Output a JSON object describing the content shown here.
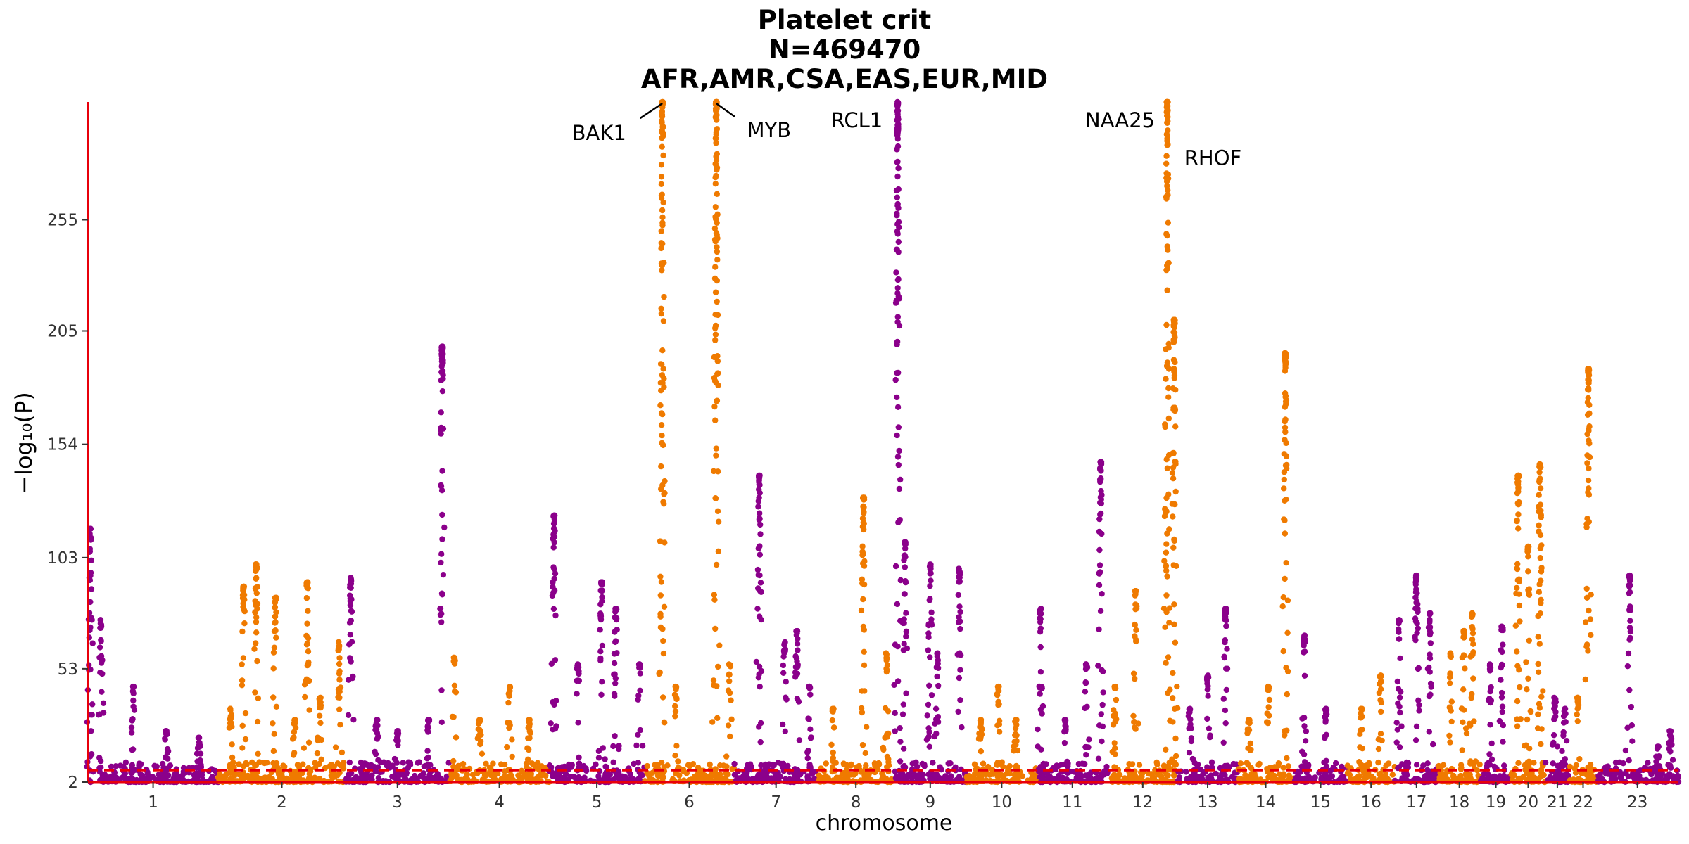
{
  "title_lines": [
    "Platelet crit",
    "N=469470",
    "AFR,AMR,CSA,EAS,EUR,MID"
  ],
  "colors": {
    "odd": "#8b008b",
    "even": "#ef7a00",
    "axis": "#e8000b",
    "threshold": "#e8000b"
  },
  "chart_data": {
    "type": "scatter",
    "subtype": "manhattan",
    "xlabel": "chromosome",
    "ylabel": "−log₁₀(P)",
    "yticks": [
      2,
      53,
      103,
      154,
      205,
      255
    ],
    "ylim": [
      2,
      308
    ],
    "threshold": 7.3,
    "chromosomes": [
      {
        "label": "1",
        "size": 248,
        "peaks": [
          [
            0.02,
            116
          ],
          [
            0.1,
            75
          ],
          [
            0.35,
            45
          ],
          [
            0.6,
            25
          ],
          [
            0.85,
            22
          ]
        ]
      },
      {
        "label": "2",
        "size": 242,
        "peaks": [
          [
            0.1,
            35
          ],
          [
            0.2,
            90
          ],
          [
            0.3,
            100
          ],
          [
            0.45,
            85
          ],
          [
            0.6,
            30
          ],
          [
            0.7,
            92
          ],
          [
            0.8,
            40
          ],
          [
            0.95,
            65
          ]
        ]
      },
      {
        "label": "3",
        "size": 198,
        "peaks": [
          [
            0.05,
            94
          ],
          [
            0.3,
            30
          ],
          [
            0.5,
            25
          ],
          [
            0.8,
            30
          ],
          [
            0.93,
            198
          ]
        ]
      },
      {
        "label": "4",
        "size": 190,
        "peaks": [
          [
            0.05,
            58
          ],
          [
            0.3,
            30
          ],
          [
            0.6,
            45
          ],
          [
            0.8,
            30
          ]
        ]
      },
      {
        "label": "5",
        "size": 181,
        "peaks": [
          [
            0.05,
            122
          ],
          [
            0.3,
            55
          ],
          [
            0.55,
            92
          ],
          [
            0.7,
            80
          ],
          [
            0.95,
            55
          ]
        ]
      },
      {
        "label": "6",
        "size": 171,
        "peaks": [
          [
            0.2,
            308
          ],
          [
            0.35,
            45
          ],
          [
            0.8,
            308
          ],
          [
            0.95,
            55
          ]
        ]
      },
      {
        "label": "7",
        "size": 159,
        "peaks": [
          [
            0.3,
            140
          ],
          [
            0.6,
            65
          ],
          [
            0.75,
            70
          ],
          [
            0.9,
            45
          ]
        ]
      },
      {
        "label": "8",
        "size": 145,
        "peaks": [
          [
            0.2,
            35
          ],
          [
            0.6,
            130
          ],
          [
            0.9,
            60
          ]
        ]
      },
      {
        "label": "9",
        "size": 138,
        "peaks": [
          [
            0.05,
            308
          ],
          [
            0.15,
            110
          ],
          [
            0.5,
            100
          ],
          [
            0.6,
            60
          ],
          [
            0.9,
            98
          ]
        ]
      },
      {
        "label": "10",
        "size": 134,
        "peaks": [
          [
            0.2,
            30
          ],
          [
            0.45,
            45
          ],
          [
            0.7,
            30
          ]
        ]
      },
      {
        "label": "11",
        "size": 135,
        "peaks": [
          [
            0.05,
            80
          ],
          [
            0.4,
            30
          ],
          [
            0.7,
            55
          ],
          [
            0.9,
            146
          ]
        ]
      },
      {
        "label": "12",
        "size": 133,
        "peaks": [
          [
            0.1,
            45
          ],
          [
            0.4,
            88
          ],
          [
            0.85,
            308
          ],
          [
            0.95,
            210
          ]
        ]
      },
      {
        "label": "13",
        "size": 114,
        "peaks": [
          [
            0.2,
            35
          ],
          [
            0.5,
            50
          ],
          [
            0.8,
            80
          ]
        ]
      },
      {
        "label": "14",
        "size": 107,
        "peaks": [
          [
            0.2,
            30
          ],
          [
            0.55,
            45
          ],
          [
            0.85,
            195
          ]
        ]
      },
      {
        "label": "15",
        "size": 102,
        "peaks": [
          [
            0.2,
            68
          ],
          [
            0.6,
            35
          ]
        ]
      },
      {
        "label": "16",
        "size": 90,
        "peaks": [
          [
            0.3,
            35
          ],
          [
            0.7,
            50
          ]
        ]
      },
      {
        "label": "17",
        "size": 83,
        "peaks": [
          [
            0.1,
            75
          ],
          [
            0.5,
            95
          ],
          [
            0.8,
            78
          ]
        ]
      },
      {
        "label": "18",
        "size": 80,
        "peaks": [
          [
            0.3,
            60
          ],
          [
            0.6,
            70
          ],
          [
            0.8,
            78
          ]
        ]
      },
      {
        "label": "19",
        "size": 59,
        "peaks": [
          [
            0.3,
            55
          ],
          [
            0.7,
            72
          ]
        ]
      },
      {
        "label": "20",
        "size": 64,
        "peaks": [
          [
            0.2,
            140
          ],
          [
            0.5,
            108
          ],
          [
            0.85,
            145
          ]
        ]
      },
      {
        "label": "21",
        "size": 47,
        "peaks": [
          [
            0.4,
            40
          ],
          [
            0.8,
            35
          ]
        ]
      },
      {
        "label": "22",
        "size": 51,
        "peaks": [
          [
            0.3,
            40
          ],
          [
            0.7,
            188
          ]
        ]
      },
      {
        "label": "23",
        "size": 156,
        "peaks": [
          [
            0.4,
            95
          ],
          [
            0.75,
            18
          ],
          [
            0.9,
            25
          ]
        ]
      }
    ],
    "annotations": [
      {
        "label": "BAK1",
        "chrom": "6",
        "pos": 0.2,
        "y": 308
      },
      {
        "label": "MYB",
        "chrom": "6",
        "pos": 0.8,
        "y": 308
      },
      {
        "label": "RCL1",
        "chrom": "9",
        "pos": 0.05,
        "y": 308
      },
      {
        "label": "NAA25",
        "chrom": "12",
        "pos": 0.85,
        "y": 308
      },
      {
        "label": "RHOF",
        "chrom": "12",
        "pos": 0.95,
        "y": 300
      }
    ]
  }
}
